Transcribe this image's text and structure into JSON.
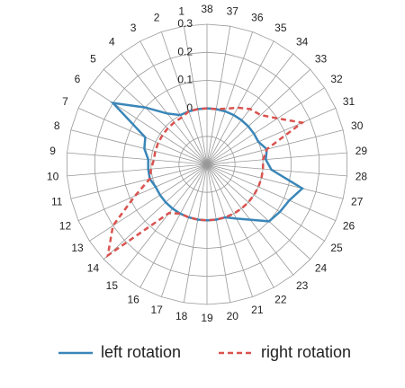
{
  "chart_data": {
    "type": "radar",
    "categories": [
      "1",
      "2",
      "3",
      "4",
      "5",
      "6",
      "7",
      "8",
      "9",
      "10",
      "11",
      "12",
      "13",
      "14",
      "15",
      "16",
      "17",
      "18",
      "19",
      "20",
      "21",
      "22",
      "23",
      "24",
      "25",
      "26",
      "27",
      "28",
      "29",
      "30",
      "31",
      "32",
      "33",
      "34",
      "35",
      "36",
      "37",
      "38"
    ],
    "rlim": [
      -0.2,
      0.3
    ],
    "rticks": [
      0,
      0.1,
      0.2,
      0.3
    ],
    "direction": "counterclockwise",
    "grid": true,
    "legend": "bottom",
    "series": [
      {
        "name": "left rotation",
        "color": "#3a86b8",
        "style": "solid",
        "values": [
          0,
          0,
          0,
          0.03,
          0.1,
          0.2,
          0.04,
          0.03,
          0.01,
          0.01,
          0.01,
          0,
          0,
          0,
          0,
          0,
          0,
          0,
          0,
          0,
          0,
          0.02,
          0.05,
          0.1,
          0.11,
          0.12,
          0.15,
          0.03,
          0.01,
          0.02,
          0,
          0,
          0,
          0,
          0,
          0,
          0,
          0
        ]
      },
      {
        "name": "right rotation",
        "color": "#d9534f",
        "style": "dashed",
        "values": [
          0,
          0,
          -0.01,
          -0.01,
          -0.01,
          -0.01,
          -0.01,
          -0.01,
          -0.01,
          0,
          0.01,
          0.08,
          0.2,
          0.28,
          0.02,
          0,
          0,
          0,
          0,
          0,
          0,
          0,
          0,
          0,
          0,
          0,
          0,
          0,
          0,
          0.02,
          0.17,
          0.1,
          0.06,
          0.05,
          0.03,
          0.01,
          0,
          0
        ]
      }
    ]
  }
}
